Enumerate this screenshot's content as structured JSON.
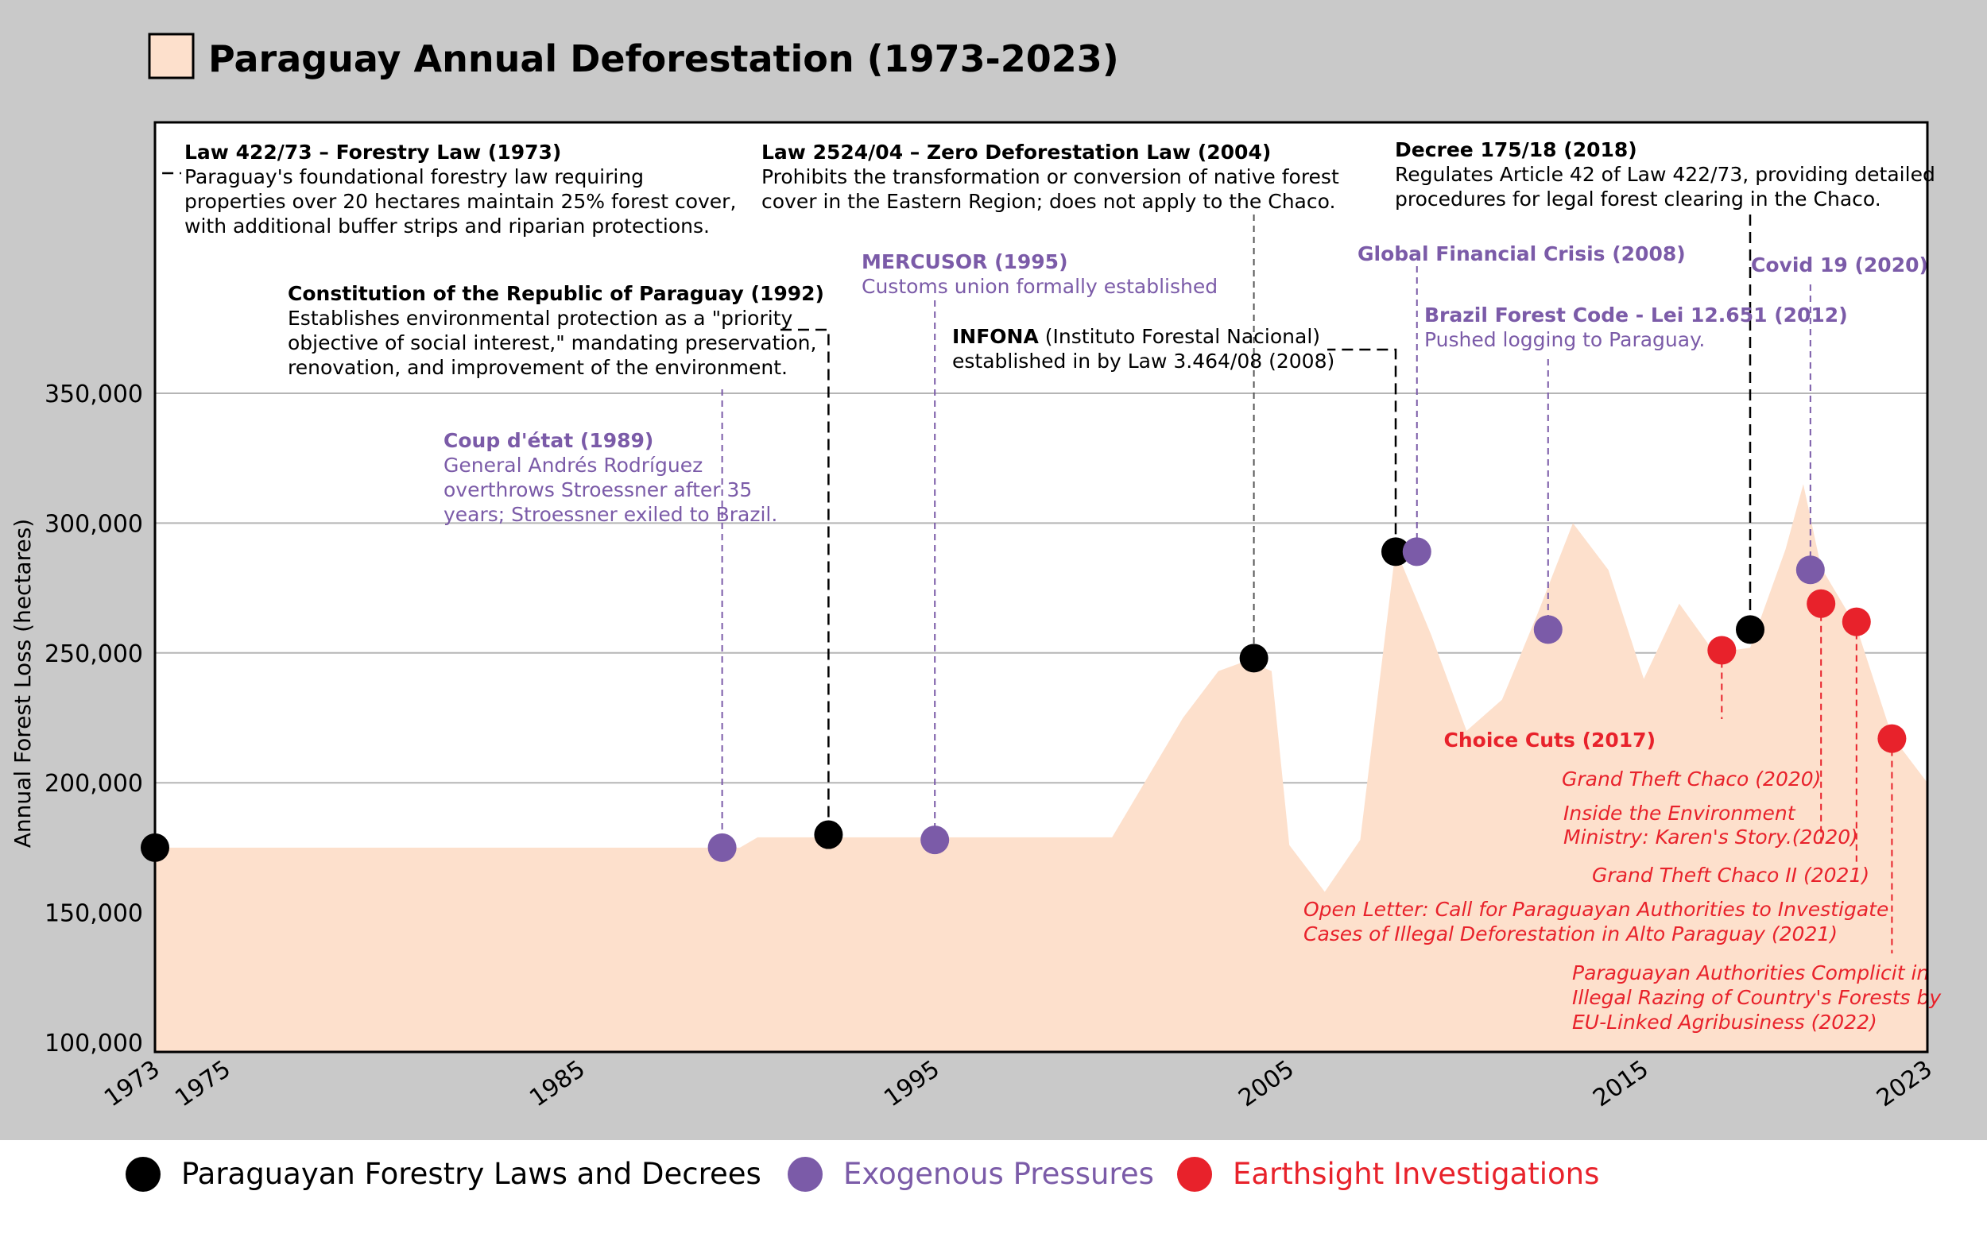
{
  "title": "Paraguay Annual Deforestation (1973-2023)",
  "colors": {
    "background": "#c9c9c9",
    "plot_background": "#ffffff",
    "area_fill": "#fde0cc",
    "legend_band": "#ffffff",
    "law": "#000000",
    "exogenous": "#7b5ba8",
    "earthsight": "#e8222b",
    "grid": "#b5b5b5"
  },
  "legend": [
    {
      "label": "Paraguayan Forestry Laws and Decrees",
      "color": "#000000"
    },
    {
      "label": "Exogenous Pressures",
      "color": "#7b5ba8"
    },
    {
      "label": "Earthsight Investigations",
      "color": "#e8222b"
    }
  ],
  "chart_data": {
    "type": "area",
    "title": "Paraguay Annual Deforestation (1973-2023)",
    "xlabel": "",
    "ylabel": "Annual Forest Loss (hectares)",
    "xlim": [
      1973,
      2023
    ],
    "ylim": [
      100000,
      400000
    ],
    "x_ticks": [
      1973,
      1975,
      1985,
      1995,
      2005,
      2015,
      2023
    ],
    "y_ticks": [
      {
        "value": 100000,
        "label": "100,000"
      },
      {
        "value": 150000,
        "label": "150,000"
      },
      {
        "value": 200000,
        "label": "200,000"
      },
      {
        "value": 250000,
        "label": "250,000"
      },
      {
        "value": 300000,
        "label": "300,000"
      },
      {
        "value": 350000,
        "label": "350,000"
      }
    ],
    "grid": true,
    "x": [
      1973,
      1989.5,
      1990,
      2000,
      2001,
      2002,
      2003,
      2003.8,
      2004.5,
      2005,
      2006,
      2007,
      2008,
      2009,
      2010,
      2011,
      2012,
      2013,
      2014,
      2015,
      2016,
      2017,
      2018,
      2019,
      2019.5,
      2020,
      2021,
      2022,
      2023
    ],
    "y": [
      175000,
      175000,
      179000,
      179000,
      202000,
      225000,
      243000,
      247000,
      243000,
      176000,
      158000,
      178000,
      290000,
      257000,
      220000,
      232000,
      265000,
      300000,
      282000,
      240000,
      269000,
      250000,
      252000,
      290000,
      315000,
      283000,
      260000,
      218000,
      200000
    ],
    "events": [
      {
        "year": 1973,
        "value": 175000,
        "category": "law",
        "title": "Law 422/73 – Forestry Law (1973)",
        "lines": [
          "Paraguay's foundational forestry law requiring",
          "properties over 20 hectares maintain 25% forest cover,",
          "with additional buffer strips and riparian protections."
        ]
      },
      {
        "year": 1989,
        "value": 175000,
        "category": "exogenous",
        "title": "Coup d'état (1989)",
        "lines": [
          "General Andrés Rodríguez",
          "overthrows Stroessner after 35",
          "years; Stroessner exiled to Brazil."
        ]
      },
      {
        "year": 1992,
        "value": 180000,
        "category": "law",
        "title": "Constitution of the Republic of Paraguay (1992)",
        "lines": [
          "Establishes environmental protection as a \"priority",
          "objective of social interest,\" mandating preservation,",
          "renovation, and improvement of the environment."
        ]
      },
      {
        "year": 1995,
        "value": 178000,
        "category": "exogenous",
        "title": "MERCUSOR  (1995)",
        "lines": [
          "Customs union formally established"
        ]
      },
      {
        "year": 2004,
        "value": 248000,
        "category": "law",
        "title": "Law 2524/04 – Zero Deforestation Law (2004)",
        "lines": [
          "Prohibits the transformation or conversion of native forest",
          "cover in the Eastern Region; does not apply to the Chaco."
        ]
      },
      {
        "year": 2008,
        "value": 289000,
        "category": "law",
        "title": "INFONA",
        "title_suffix": " (Instituto Forestal Nacional)",
        "lines": [
          "established in by Law 3.464/08 (2008)"
        ]
      },
      {
        "year": 2008.6,
        "value": 289000,
        "category": "exogenous",
        "title": "Global Financial Crisis (2008)",
        "lines": []
      },
      {
        "year": 2012.3,
        "value": 259000,
        "category": "exogenous",
        "title": "Brazil Forest Code - Lei 12.651 (2012)",
        "lines": [
          "Pushed logging to Paraguay."
        ]
      },
      {
        "year": 2017.2,
        "value": 251000,
        "category": "earthsight",
        "title": "Choice Cuts (2017)",
        "lines": []
      },
      {
        "year": 2018,
        "value": 259000,
        "category": "law",
        "title": "Decree 175/18 (2018)",
        "lines": [
          "Regulates Article 42 of Law 422/73, providing detailed",
          "procedures for legal forest clearing in the Chaco."
        ]
      },
      {
        "year": 2019.7,
        "value": 282000,
        "category": "exogenous",
        "title": "Covid 19 (2020)",
        "lines": []
      },
      {
        "year": 2020,
        "value": 269000,
        "category": "earthsight",
        "title": "",
        "lines": [
          "Grand Theft Chaco (2020)",
          "Inside the Environment",
          "Ministry: Karen's Story.(2020)"
        ]
      },
      {
        "year": 2021,
        "value": 262000,
        "category": "earthsight",
        "title": "",
        "lines": [
          "Grand Theft Chaco II (2021)",
          "Open Letter: Call for Paraguayan Authorities to Investigate",
          "Cases of Illegal Deforestation in Alto Paraguay (2021)"
        ]
      },
      {
        "year": 2022,
        "value": 217000,
        "category": "earthsight",
        "title": "",
        "lines": [
          "Paraguayan Authorities Complicit in",
          "Illegal Razing of Country's Forests by",
          "EU-Linked Agribusiness (2022)"
        ]
      }
    ]
  }
}
